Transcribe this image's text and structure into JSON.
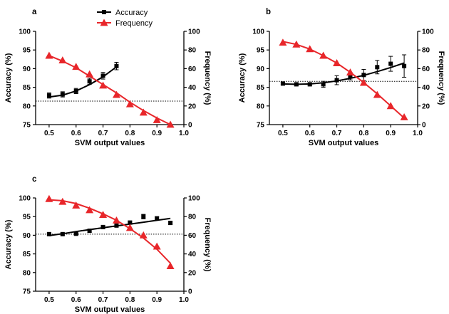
{
  "colors": {
    "accuracy": "#000000",
    "frequency": "#e8262a",
    "reference_line": "#000000"
  },
  "legend": {
    "accuracy": "Accuracy",
    "frequency": "Frequency",
    "placement": "top-center of panel a"
  },
  "chart_data": [
    {
      "panel": "a",
      "type": "scatter",
      "xlabel": "SVM output values",
      "ylabel": "Accuracy (%)",
      "y2label": "Frequency (%)",
      "xlim": [
        0.45,
        1.0
      ],
      "ylim": [
        75,
        100
      ],
      "y2lim": [
        0,
        100
      ],
      "xticks": [
        "0.5",
        "0.6",
        "0.7",
        "0.8",
        "0.9",
        "1.0"
      ],
      "yticks": [
        "75",
        "80",
        "85",
        "90",
        "95",
        "100"
      ],
      "y2ticks": [
        "0",
        "20",
        "40",
        "60",
        "80",
        "100"
      ],
      "reference_line": 81.3,
      "series": [
        {
          "name": "Accuracy",
          "axis": "left",
          "marker": "square",
          "x": [
            0.5,
            0.55,
            0.6,
            0.65,
            0.7,
            0.75
          ],
          "y": [
            82.8,
            83.1,
            84.0,
            86.6,
            88.1,
            90.7
          ],
          "err": [
            0.7,
            0.7,
            0.7,
            0.8,
            0.9,
            1.0
          ],
          "fit_x": [
            0.5,
            0.55,
            0.6,
            0.65,
            0.7,
            0.75
          ],
          "fit_y": [
            82.4,
            82.9,
            84.0,
            85.7,
            87.8,
            90.5
          ]
        },
        {
          "name": "Frequency",
          "axis": "right",
          "marker": "triangle",
          "x": [
            0.5,
            0.55,
            0.6,
            0.65,
            0.7,
            0.75,
            0.8,
            0.85,
            0.9,
            0.95
          ],
          "y": [
            74,
            69,
            62,
            54,
            42,
            32,
            22,
            13,
            5,
            0
          ],
          "fit_x": [
            0.5,
            0.55,
            0.6,
            0.65,
            0.7,
            0.75,
            0.8,
            0.85,
            0.9,
            0.95
          ],
          "fit_y": [
            74,
            68,
            61,
            52,
            43,
            34,
            24,
            15,
            7,
            0
          ]
        }
      ]
    },
    {
      "panel": "b",
      "type": "scatter",
      "xlabel": "SVM output values",
      "ylabel": "Accuracy (%)",
      "y2label": "Frequency (%)",
      "xlim": [
        0.45,
        1.0
      ],
      "ylim": [
        75,
        100
      ],
      "y2lim": [
        0,
        100
      ],
      "xticks": [
        "0.5",
        "0.6",
        "0.7",
        "0.8",
        "0.9",
        "1.0"
      ],
      "yticks": [
        "75",
        "80",
        "85",
        "90",
        "95",
        "100"
      ],
      "y2ticks": [
        "0",
        "20",
        "40",
        "60",
        "80",
        "100"
      ],
      "reference_line": 86.6,
      "series": [
        {
          "name": "Accuracy",
          "axis": "left",
          "marker": "square",
          "x": [
            0.5,
            0.55,
            0.6,
            0.65,
            0.7,
            0.75,
            0.8,
            0.85,
            0.9,
            0.95
          ],
          "y": [
            86.0,
            85.8,
            85.8,
            85.8,
            86.9,
            88.0,
            88.3,
            90.4,
            91.3,
            90.7
          ],
          "err": [
            0.3,
            0.4,
            0.4,
            0.8,
            1.2,
            1.0,
            1.5,
            1.8,
            2.0,
            3.0
          ],
          "fit_x": [
            0.5,
            0.55,
            0.6,
            0.65,
            0.7,
            0.75,
            0.8,
            0.85,
            0.9,
            0.95
          ],
          "fit_y": [
            85.9,
            85.8,
            85.9,
            86.2,
            86.7,
            87.4,
            88.2,
            89.2,
            90.3,
            91.5
          ]
        },
        {
          "name": "Frequency",
          "axis": "right",
          "marker": "triangle",
          "x": [
            0.5,
            0.55,
            0.6,
            0.65,
            0.7,
            0.75,
            0.8,
            0.85,
            0.9,
            0.95
          ],
          "y": [
            88,
            86,
            81,
            74,
            66,
            56,
            45,
            32,
            20,
            8
          ],
          "fit_x": [
            0.5,
            0.55,
            0.6,
            0.65,
            0.7,
            0.75,
            0.8,
            0.85,
            0.9,
            0.95
          ],
          "fit_y": [
            89,
            86,
            81,
            74,
            66,
            56,
            45,
            33,
            20,
            7
          ]
        }
      ]
    },
    {
      "panel": "c",
      "type": "scatter",
      "xlabel": "SVM output values",
      "ylabel": "Accuracy (%)",
      "y2label": "Frequency (%)",
      "xlim": [
        0.45,
        1.0
      ],
      "ylim": [
        75,
        100
      ],
      "y2lim": [
        0,
        100
      ],
      "xticks": [
        "0.5",
        "0.6",
        "0.7",
        "0.8",
        "0.9",
        "1.0"
      ],
      "yticks": [
        "75",
        "80",
        "85",
        "90",
        "95",
        "100"
      ],
      "y2ticks": [
        "0",
        "20",
        "40",
        "60",
        "80",
        "100"
      ],
      "reference_line": 90.3,
      "series": [
        {
          "name": "Accuracy",
          "axis": "left",
          "marker": "square",
          "x": [
            0.5,
            0.55,
            0.6,
            0.65,
            0.7,
            0.75,
            0.8,
            0.85,
            0.9,
            0.95
          ],
          "y": [
            90.3,
            90.3,
            90.4,
            91.2,
            92.2,
            92.6,
            93.4,
            95.0,
            94.5,
            93.3
          ],
          "err": [
            0.3,
            0.3,
            0.3,
            0.4,
            0.3,
            0.4,
            0.4,
            0.6,
            0.5,
            0.4
          ],
          "fit_x": [
            0.5,
            0.55,
            0.6,
            0.65,
            0.7,
            0.75,
            0.8,
            0.85,
            0.9,
            0.95
          ],
          "fit_y": [
            89.9,
            90.4,
            91.0,
            91.5,
            92.0,
            92.5,
            93.0,
            93.5,
            94.0,
            94.5
          ]
        },
        {
          "name": "Frequency",
          "axis": "right",
          "marker": "triangle",
          "x": [
            0.5,
            0.55,
            0.6,
            0.65,
            0.7,
            0.75,
            0.8,
            0.85,
            0.9,
            0.95
          ],
          "y": [
            99,
            96,
            92,
            87,
            82,
            76,
            68,
            60,
            48,
            27
          ],
          "fit_x": [
            0.5,
            0.55,
            0.6,
            0.65,
            0.7,
            0.75,
            0.8,
            0.85,
            0.9,
            0.95
          ],
          "fit_y": [
            98,
            97,
            94,
            89,
            83,
            76,
            67,
            57,
            45,
            30
          ]
        }
      ]
    }
  ]
}
